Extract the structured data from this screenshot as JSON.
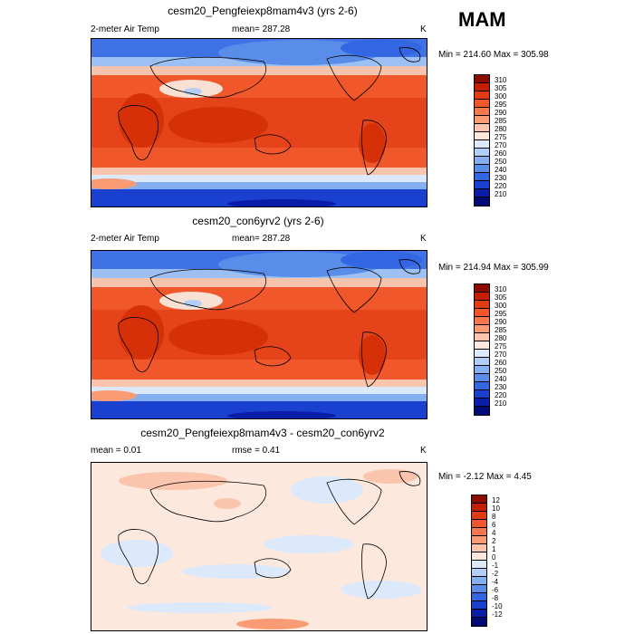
{
  "season": "MAM",
  "units": "K",
  "panel1": {
    "title": "cesm20_Pengfeiexp8mam4v3 (yrs 2-6)",
    "variable": "2-meter Air Temp",
    "mean_label": "mean= 287.28",
    "minmax": "Min = 214.60 Max = 305.98"
  },
  "panel2": {
    "title": "cesm20_con6yrv2 (yrs 2-6)",
    "variable": "2-meter Air Temp",
    "mean_label": "mean= 287.28",
    "minmax": "Min = 214.94 Max = 305.99"
  },
  "panel3": {
    "title": "cesm20_Pengfeiexp8mam4v3 - cesm20_con6yrv2",
    "mean_label": "mean =   0.01",
    "rmse_label": "rmse =   0.41",
    "minmax": "Min =  -2.12 Max =   4.45"
  },
  "temp_levels": [
    "310",
    "305",
    "300",
    "295",
    "290",
    "285",
    "280",
    "275",
    "270",
    "260",
    "250",
    "240",
    "230",
    "220",
    "210"
  ],
  "temp_colors": [
    "#8b0d00",
    "#c31f00",
    "#e23b0f",
    "#f0582b",
    "#f6784c",
    "#f99c76",
    "#fbc5ad",
    "#fde8dd",
    "#dbe9fb",
    "#b2cef6",
    "#84aff0",
    "#5a8de9",
    "#3366e2",
    "#1a40cf",
    "#0a1da8",
    "#020a78"
  ],
  "diff_levels": [
    "12",
    "10",
    "8",
    "6",
    "4",
    "2",
    "1",
    "0",
    "-1",
    "-2",
    "-4",
    "-6",
    "-8",
    "-10",
    "-12"
  ],
  "diff_colors": [
    "#8b0d00",
    "#c31f00",
    "#e23b0f",
    "#f0582b",
    "#f6784c",
    "#f99c76",
    "#fbc5ad",
    "#fde8dd",
    "#dbe9fb",
    "#b2cef6",
    "#84aff0",
    "#5a8de9",
    "#3366e2",
    "#1a40cf",
    "#0a1da8",
    "#020a78"
  ]
}
